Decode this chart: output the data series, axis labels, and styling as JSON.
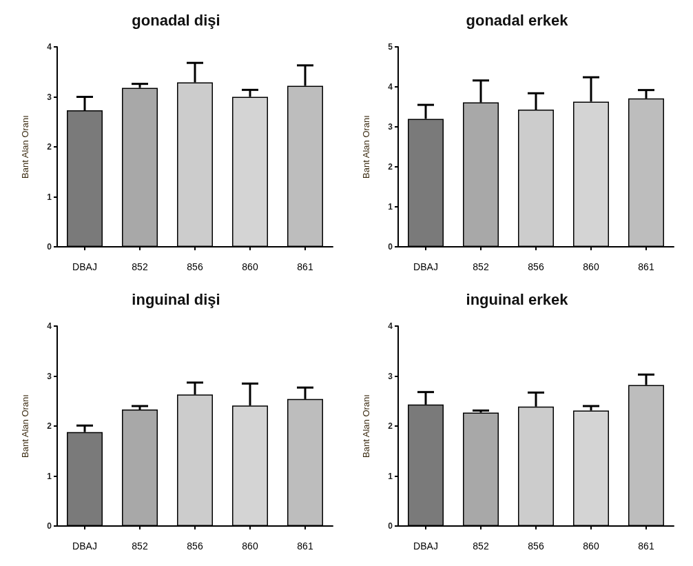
{
  "chart_data": [
    {
      "type": "bar",
      "title": "gonadal dişi",
      "ylabel": "Bant Alan Oranı",
      "categories": [
        "DBAJ",
        "852",
        "856",
        "860",
        "861"
      ],
      "values": [
        2.73,
        3.18,
        3.29,
        3.0,
        3.22
      ],
      "errors": [
        [
          2.73,
          3.0
        ],
        [
          3.18,
          3.26
        ],
        [
          3.29,
          3.68
        ],
        [
          3.0,
          3.14
        ],
        [
          3.22,
          3.63
        ]
      ],
      "colors": [
        "#7a7a7a",
        "#a8a8a8",
        "#cccccc",
        "#d4d4d4",
        "#bdbdbd"
      ],
      "ylim": [
        0,
        4
      ],
      "yticks": [
        0,
        1,
        2,
        3,
        4
      ],
      "grid": false
    },
    {
      "type": "bar",
      "title": "gonadal erkek",
      "ylabel": "Bant Alan Oranı",
      "categories": [
        "DBAJ",
        "852",
        "856",
        "860",
        "861"
      ],
      "values": [
        3.2,
        3.61,
        3.43,
        3.63,
        3.71
      ],
      "errors": [
        [
          3.2,
          3.55
        ],
        [
          3.61,
          4.16
        ],
        [
          3.43,
          3.84
        ],
        [
          3.63,
          4.24
        ],
        [
          3.71,
          3.92
        ]
      ],
      "colors": [
        "#7a7a7a",
        "#a8a8a8",
        "#cccccc",
        "#d4d4d4",
        "#bdbdbd"
      ],
      "ylim": [
        0,
        5
      ],
      "yticks": [
        0,
        1,
        2,
        3,
        4,
        5
      ],
      "grid": false
    },
    {
      "type": "bar",
      "title": "inguinal dişi",
      "ylabel": "Bant Alan Oranı",
      "categories": [
        "DBAJ",
        "852",
        "856",
        "860",
        "861"
      ],
      "values": [
        1.88,
        2.33,
        2.63,
        2.41,
        2.54
      ],
      "errors": [
        [
          1.88,
          2.01
        ],
        [
          2.33,
          2.4
        ],
        [
          2.63,
          2.87
        ],
        [
          2.41,
          2.85
        ],
        [
          2.54,
          2.77
        ]
      ],
      "colors": [
        "#7a7a7a",
        "#a8a8a8",
        "#cccccc",
        "#d4d4d4",
        "#bdbdbd"
      ],
      "ylim": [
        0,
        4
      ],
      "yticks": [
        0,
        1,
        2,
        3,
        4
      ],
      "grid": false
    },
    {
      "type": "bar",
      "title": "inguinal erkek",
      "ylabel": "Bant Alan Oranı",
      "categories": [
        "DBAJ",
        "852",
        "856",
        "860",
        "861"
      ],
      "values": [
        2.43,
        2.27,
        2.39,
        2.31,
        2.82
      ],
      "errors": [
        [
          2.43,
          2.68
        ],
        [
          2.27,
          2.31
        ],
        [
          2.39,
          2.67
        ],
        [
          2.31,
          2.4
        ],
        [
          2.82,
          3.03
        ]
      ],
      "colors": [
        "#7a7a7a",
        "#a8a8a8",
        "#cccccc",
        "#d4d4d4",
        "#bdbdbd"
      ],
      "ylim": [
        0,
        4
      ],
      "yticks": [
        0,
        1,
        2,
        3,
        4
      ],
      "grid": false
    }
  ]
}
